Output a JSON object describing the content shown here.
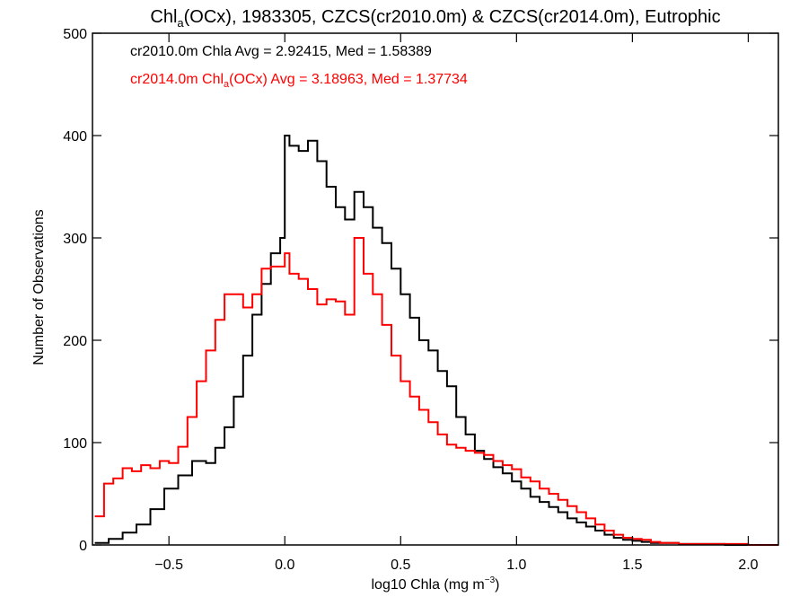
{
  "chart_data": {
    "type": "line",
    "title": {
      "prefix": "Chl",
      "subscript": "a",
      "rest": "(OCx), 1983305, CZCS(cr2010.0m) & CZCS(cr2014.0m), Eutrophic"
    },
    "xlabel": {
      "prefix": "log10 Chla (mg m",
      "superscript": "−3",
      "suffix": ")"
    },
    "ylabel": "Number of Observations",
    "xlim": [
      -0.83,
      2.13
    ],
    "ylim": [
      0,
      500
    ],
    "x_ticks": [
      -0.5,
      0.0,
      0.5,
      1.0,
      1.5,
      2.0
    ],
    "x_tick_labels": [
      "−0.5",
      "0.0",
      "0.5",
      "1.0",
      "1.5",
      "2.0"
    ],
    "y_ticks": [
      0,
      100,
      200,
      300,
      400,
      500
    ],
    "y_tick_labels": [
      "0",
      "100",
      "200",
      "300",
      "400",
      "500"
    ],
    "grid": false,
    "series": [
      {
        "color": "#000000",
        "annotation": "cr2010.0m Chla Avg = 2.92415, Med = 1.58389",
        "x": [
          -0.82,
          -0.76,
          -0.7,
          -0.64,
          -0.58,
          -0.52,
          -0.46,
          -0.4,
          -0.34,
          -0.3,
          -0.26,
          -0.22,
          -0.18,
          -0.14,
          -0.1,
          -0.06,
          -0.02,
          0.0,
          0.02,
          0.06,
          0.1,
          0.14,
          0.18,
          0.22,
          0.26,
          0.3,
          0.34,
          0.38,
          0.42,
          0.46,
          0.5,
          0.54,
          0.58,
          0.62,
          0.66,
          0.7,
          0.74,
          0.78,
          0.82,
          0.86,
          0.9,
          0.94,
          0.98,
          1.02,
          1.06,
          1.1,
          1.14,
          1.18,
          1.22,
          1.26,
          1.3,
          1.34,
          1.38,
          1.42,
          1.46,
          1.5,
          1.54,
          1.58,
          1.62,
          1.7,
          1.8,
          1.9,
          2.0,
          2.1
        ],
        "y": [
          2,
          6,
          12,
          20,
          35,
          55,
          68,
          82,
          80,
          95,
          115,
          145,
          185,
          225,
          255,
          285,
          300,
          400,
          390,
          385,
          395,
          375,
          350,
          330,
          318,
          345,
          330,
          310,
          295,
          270,
          245,
          222,
          200,
          190,
          170,
          155,
          125,
          108,
          92,
          84,
          76,
          70,
          62,
          55,
          47,
          42,
          37,
          32,
          26,
          22,
          18,
          14,
          10,
          7,
          5,
          4,
          3,
          2,
          2,
          1,
          1,
          0,
          0,
          0
        ]
      },
      {
        "color": "#ff0000",
        "annotation": {
          "prefix": "cr2014.0m Chl",
          "subscript": "a",
          "rest": "(OCx) Avg = 3.18963, Med = 1.37734"
        },
        "x": [
          -0.82,
          -0.78,
          -0.74,
          -0.7,
          -0.66,
          -0.62,
          -0.58,
          -0.54,
          -0.5,
          -0.46,
          -0.42,
          -0.38,
          -0.34,
          -0.3,
          -0.26,
          -0.22,
          -0.18,
          -0.14,
          -0.1,
          -0.06,
          -0.02,
          0.0,
          0.02,
          0.06,
          0.1,
          0.14,
          0.18,
          0.22,
          0.26,
          0.3,
          0.34,
          0.38,
          0.42,
          0.46,
          0.5,
          0.54,
          0.58,
          0.62,
          0.66,
          0.7,
          0.74,
          0.78,
          0.82,
          0.86,
          0.9,
          0.94,
          0.98,
          1.02,
          1.06,
          1.1,
          1.14,
          1.18,
          1.22,
          1.26,
          1.3,
          1.34,
          1.38,
          1.42,
          1.46,
          1.5,
          1.54,
          1.58,
          1.62,
          1.7,
          1.8,
          1.9,
          2.0,
          2.1
        ],
        "y": [
          28,
          60,
          65,
          75,
          72,
          78,
          75,
          82,
          80,
          96,
          125,
          160,
          190,
          220,
          245,
          245,
          232,
          245,
          270,
          272,
          272,
          285,
          265,
          260,
          250,
          235,
          240,
          238,
          225,
          300,
          265,
          245,
          215,
          185,
          160,
          145,
          132,
          120,
          108,
          98,
          95,
          92,
          90,
          88,
          82,
          78,
          74,
          66,
          62,
          55,
          50,
          44,
          38,
          32,
          26,
          20,
          14,
          10,
          7,
          6,
          5,
          3,
          2,
          1,
          1,
          1,
          0,
          0
        ]
      }
    ]
  }
}
